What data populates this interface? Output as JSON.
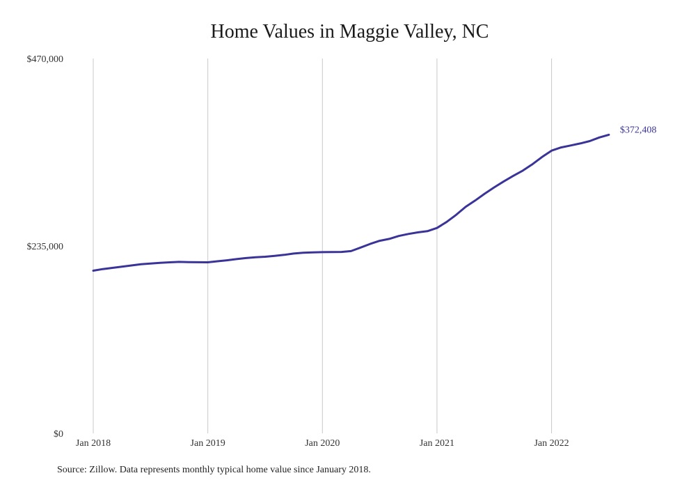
{
  "chart_data": {
    "type": "line",
    "title": "Home Values in Maggie Valley, NC",
    "xlabel": "",
    "ylabel": "",
    "ylim": [
      0,
      470000
    ],
    "y_ticks": [
      {
        "value": 0,
        "label": "$0"
      },
      {
        "value": 235000,
        "label": "$235,000"
      },
      {
        "value": 470000,
        "label": "$470,000"
      }
    ],
    "x_ticks": [
      {
        "value": 0,
        "label": "Jan 2018"
      },
      {
        "value": 12,
        "label": "Jan 2019"
      },
      {
        "value": 24,
        "label": "Jan 2020"
      },
      {
        "value": 36,
        "label": "Jan 2021"
      },
      {
        "value": 48,
        "label": "Jan 2022"
      }
    ],
    "grid": "vertical",
    "series_color": "#3a3498",
    "end_label": "$372,408",
    "series": [
      {
        "name": "",
        "values": [
          204000,
          206000,
          207500,
          209000,
          210500,
          212000,
          213000,
          213800,
          214500,
          215000,
          214700,
          214600,
          214500,
          215800,
          217000,
          218500,
          219800,
          220800,
          221500,
          222500,
          223800,
          225500,
          226500,
          227000,
          227200,
          227300,
          227500,
          228500,
          233000,
          237500,
          241500,
          243800,
          247500,
          250000,
          252000,
          253500,
          257500,
          265000,
          274000,
          284000,
          292000,
          300500,
          308500,
          316000,
          323000,
          329500,
          337500,
          346500,
          354500,
          358500,
          361000,
          363500,
          366500,
          371000,
          374400
        ]
      }
    ]
  },
  "source_note": "Source: Zillow. Data represents monthly typical home value since January 2018."
}
